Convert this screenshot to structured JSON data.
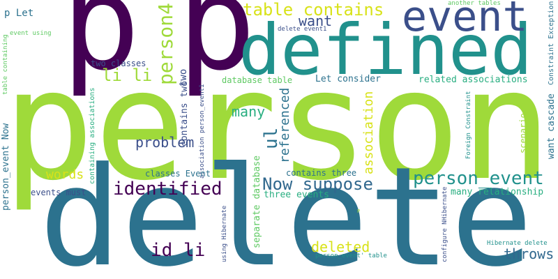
{
  "palette": {
    "dark_purple": "#440154",
    "indigo": "#3b4f8a",
    "teal": "#2c728e",
    "blue_teal": "#31688e",
    "sea_green": "#21918c",
    "green": "#28ae80",
    "lime": "#5ec962",
    "yellow_green": "#9fda3a",
    "yellow": "#d8e219"
  },
  "words": [
    {
      "text": "person",
      "color": "#9fda3a"
    },
    {
      "text": "delete",
      "color": "#2c728e"
    },
    {
      "text": "p",
      "color": "#440154"
    },
    {
      "text": "p",
      "color": "#440154"
    },
    {
      "text": "defined",
      "color": "#21918c"
    },
    {
      "text": "event",
      "color": "#3b4f8a"
    },
    {
      "text": "table contains",
      "color": "#d8e219"
    },
    {
      "text": "person4",
      "color": "#9fda3a"
    },
    {
      "text": "li li",
      "color": "#9fda3a"
    },
    {
      "text": "identified",
      "color": "#440154"
    },
    {
      "text": "Now suppose",
      "color": "#31688e"
    },
    {
      "text": "person_event",
      "color": "#21918c"
    },
    {
      "text": "id li",
      "color": "#440154"
    },
    {
      "text": "deleted",
      "color": "#d8e219"
    },
    {
      "text": "throws",
      "color": "#31688e"
    },
    {
      "text": "ul",
      "color": "#2c728e"
    },
    {
      "text": "want",
      "color": "#3b4f8a"
    },
    {
      "text": "many",
      "color": "#28ae80"
    },
    {
      "text": "problem",
      "color": "#3b4f8a"
    },
    {
      "text": "words",
      "color": "#d8e219"
    },
    {
      "text": "association",
      "color": "#d8e219"
    },
    {
      "text": "referenced",
      "color": "#2c728e"
    },
    {
      "text": "p Let",
      "color": "#2c728e"
    },
    {
      "text": "event using",
      "color": "#5ec962"
    },
    {
      "text": "table containing",
      "color": "#5ec962"
    },
    {
      "text": "person_event Now",
      "color": "#2c728e"
    },
    {
      "text": "events must",
      "color": "#3b4f8a"
    },
    {
      "text": "two classes",
      "color": "#3b4f8a"
    },
    {
      "text": "two",
      "color": "#3b4f8a"
    },
    {
      "text": "contains two",
      "color": "#3b4f8a"
    },
    {
      "text": "containing associations",
      "color": "#28ae80"
    },
    {
      "text": "association person_event1",
      "color": "#3b4f8a"
    },
    {
      "text": "database table",
      "color": "#5ec962"
    },
    {
      "text": "Let consider",
      "color": "#2c728e"
    },
    {
      "text": "related associations",
      "color": "#28ae80"
    },
    {
      "text": "delete event1",
      "color": "#3b4f8a"
    },
    {
      "text": "another tables",
      "color": "#5ec962"
    },
    {
      "text": "Constraint Exception",
      "color": "#2c728e"
    },
    {
      "text": "Foreign Constraint",
      "color": "#21918c"
    },
    {
      "text": "scenario p",
      "color": "#9fda3a"
    },
    {
      "text": "want cascade",
      "color": "#2c728e"
    },
    {
      "text": "classes Event",
      "color": "#2c728e"
    },
    {
      "text": "contains three",
      "color": "#2c728e"
    },
    {
      "text": "three events",
      "color": "#28ae80"
    },
    {
      "text": "many relationship",
      "color": "#28ae80"
    },
    {
      "text": "separate database",
      "color": "#5ec962"
    },
    {
      "text": "using Hibernate",
      "color": "#3b4f8a"
    },
    {
      "text": "configure NHibernate",
      "color": "#3b4f8a"
    },
    {
      "text": "person_event' table",
      "color": "#21918c"
    },
    {
      "text": "Hibernate delete",
      "color": "#21918c"
    },
    {
      "text": "P",
      "color": "#9fda3a"
    }
  ]
}
